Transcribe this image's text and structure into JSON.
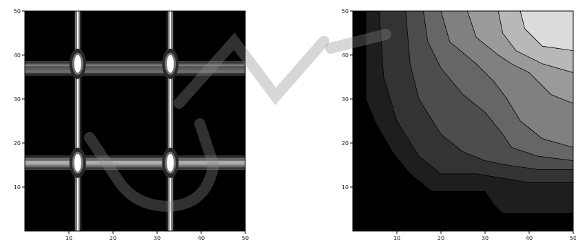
{
  "chart_data": [
    {
      "type": "heatmap",
      "xlim": [
        0,
        50
      ],
      "ylim": [
        0,
        50
      ],
      "xticks": [
        10,
        20,
        30,
        40,
        50
      ],
      "yticks": [
        10,
        20,
        30,
        40,
        50
      ],
      "grid": false,
      "background_color": "#000000",
      "vertical_bands": [
        {
          "x": 12,
          "color": "#ffffff"
        },
        {
          "x": 33,
          "color": "#ffffff"
        }
      ],
      "horizontal_bands": [
        {
          "y": 15.5,
          "color": "#aaaaaa"
        },
        {
          "y": 37,
          "color": "#444444"
        }
      ],
      "bright_spots": [
        {
          "x": 12,
          "y": 38
        },
        {
          "x": 33,
          "y": 38
        },
        {
          "x": 12,
          "y": 15.5
        },
        {
          "x": 33,
          "y": 15.5
        }
      ]
    },
    {
      "type": "heatmap",
      "xlim": [
        0,
        50
      ],
      "ylim": [
        0,
        50
      ],
      "xticks": [
        10,
        20,
        30,
        40,
        50
      ],
      "yticks": [
        10,
        20,
        30,
        40,
        50
      ],
      "grid": false,
      "contour_levels": [
        {
          "level": 1,
          "color": "#000000"
        },
        {
          "level": 2,
          "color": "#1e1e1e"
        },
        {
          "level": 3,
          "color": "#333333"
        },
        {
          "level": 4,
          "color": "#4d4d4d"
        },
        {
          "level": 5,
          "color": "#666666"
        },
        {
          "level": 6,
          "color": "#808080"
        },
        {
          "level": 7,
          "color": "#9a9a9a"
        },
        {
          "level": 8,
          "color": "#b8b8b8"
        },
        {
          "level": 9,
          "color": "#dcdcdc"
        }
      ],
      "contour_boundaries": [
        {
          "level": 2,
          "points": [
            [
              3,
              50
            ],
            [
              3,
              30
            ],
            [
              5,
              25
            ],
            [
              9,
              18
            ],
            [
              13,
              13
            ],
            [
              18,
              9
            ],
            [
              27,
              9
            ],
            [
              30,
              9
            ],
            [
              32,
              6
            ],
            [
              34,
              4
            ],
            [
              50,
              4
            ]
          ]
        },
        {
          "level": 3,
          "points": [
            [
              6,
              50
            ],
            [
              7,
              35
            ],
            [
              10,
              25
            ],
            [
              15,
              17
            ],
            [
              20,
              13
            ],
            [
              28,
              13
            ],
            [
              34,
              12
            ],
            [
              40,
              11
            ],
            [
              50,
              11
            ]
          ]
        },
        {
          "level": 4,
          "points": [
            [
              12,
              50
            ],
            [
              13,
              38
            ],
            [
              15,
              30
            ],
            [
              20,
              22
            ],
            [
              25,
              18
            ],
            [
              30,
              16
            ],
            [
              35,
              15
            ],
            [
              42,
              14
            ],
            [
              50,
              14
            ]
          ]
        },
        {
          "level": 5,
          "points": [
            [
              16,
              50
            ],
            [
              17,
              43
            ],
            [
              20,
              37
            ],
            [
              25,
              31
            ],
            [
              30,
              27
            ],
            [
              34,
              22
            ],
            [
              36,
              19
            ],
            [
              42,
              17
            ],
            [
              50,
              16
            ]
          ]
        },
        {
          "level": 6,
          "points": [
            [
              20,
              50
            ],
            [
              22,
              43
            ],
            [
              28,
              38
            ],
            [
              32,
              34
            ],
            [
              35,
              30
            ],
            [
              38,
              25
            ],
            [
              43,
              21
            ],
            [
              50,
              19
            ]
          ]
        },
        {
          "level": 7,
          "points": [
            [
              26,
              50
            ],
            [
              28,
              44
            ],
            [
              33,
              40
            ],
            [
              36,
              38
            ],
            [
              40,
              36
            ],
            [
              45,
              31
            ],
            [
              50,
              29
            ]
          ]
        },
        {
          "level": 8,
          "points": [
            [
              33,
              50
            ],
            [
              34,
              45
            ],
            [
              37,
              41
            ],
            [
              43,
              38
            ],
            [
              50,
              36
            ]
          ]
        },
        {
          "level": 9,
          "points": [
            [
              38,
              50
            ],
            [
              39,
              46
            ],
            [
              43,
              42
            ],
            [
              50,
              41
            ]
          ]
        }
      ]
    }
  ]
}
